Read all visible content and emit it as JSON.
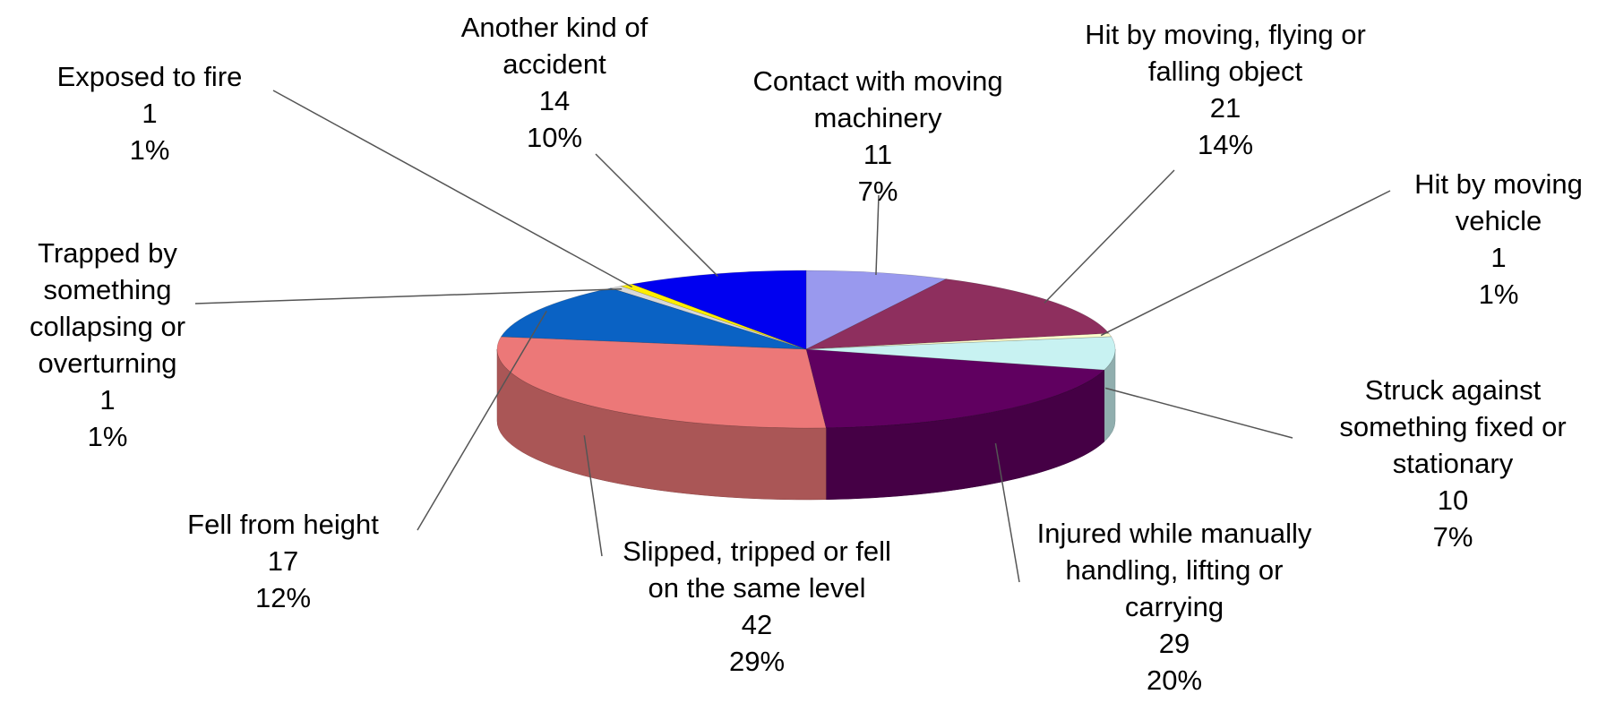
{
  "chart_data": {
    "type": "pie3d",
    "categories": [
      "Contact with moving machinery",
      "Hit by moving, flying or falling object",
      "Hit by moving vehicle",
      "Struck against something fixed or stationary",
      "Injured while manually handling, lifting or carrying",
      "Slipped, tripped or fell on the same level",
      "Fell from height",
      "Trapped by something collapsing or overturning",
      "Exposed to fire",
      "Another kind of accident"
    ],
    "values": [
      11,
      21,
      1,
      10,
      29,
      42,
      17,
      1,
      1,
      14
    ],
    "percent_labels": [
      "7%",
      "14%",
      "1%",
      "7%",
      "20%",
      "29%",
      "12%",
      "1%",
      "1%",
      "10%"
    ],
    "colors": [
      "#9999ee",
      "#8e2f5e",
      "#ffffcc",
      "#c8f2f2",
      "#600060",
      "#ec7878",
      "#0a62c4",
      "#d8d8d8",
      "#ffee00",
      "#0000f0"
    ]
  }
}
